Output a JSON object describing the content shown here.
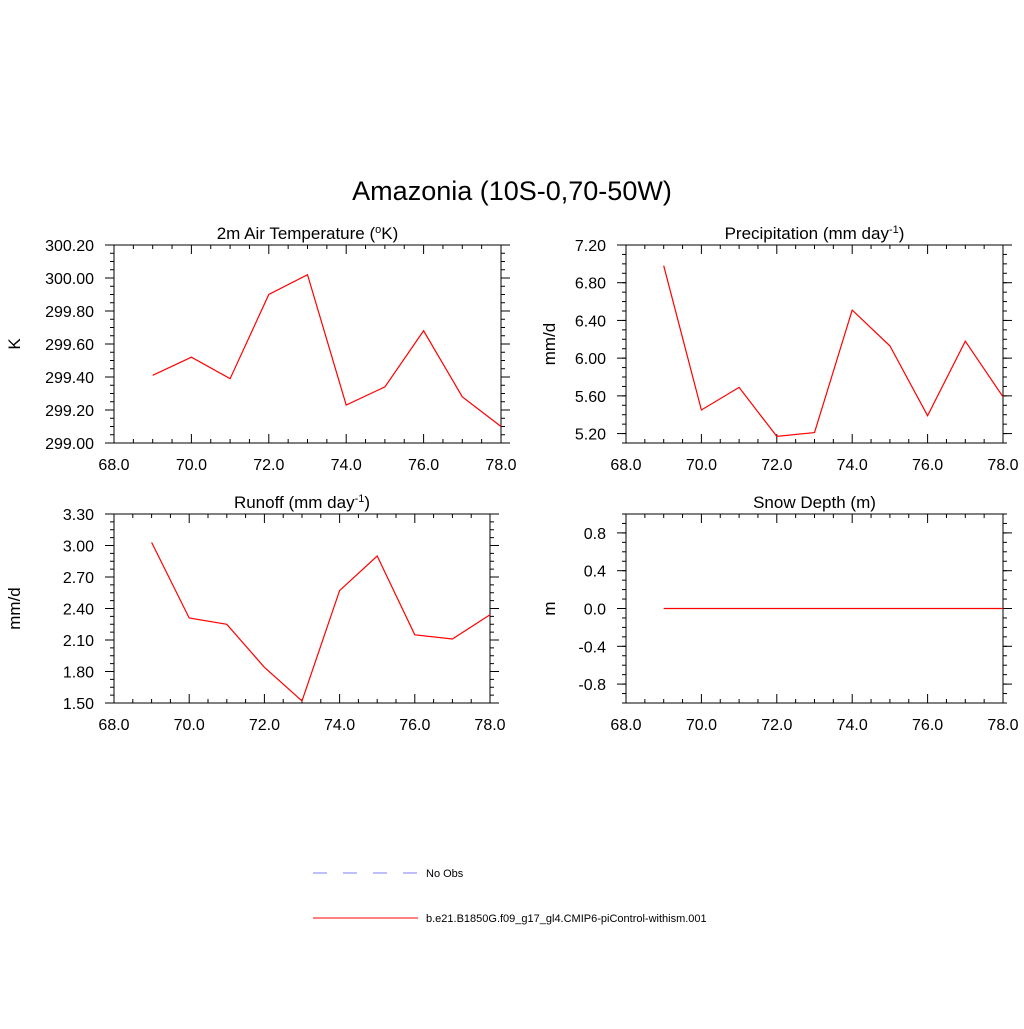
{
  "title": "Amazonia (10S-0,70-50W)",
  "colors": {
    "series": "#ff0000",
    "obs": "#9999ff",
    "axis": "#000000"
  },
  "chart_data": [
    {
      "id": "temp",
      "type": "line",
      "title": "2m Air Temperature (",
      "title_sup": "o",
      "title_after": "K)",
      "ylabel": "K",
      "xlim": [
        68,
        78
      ],
      "ylim": [
        299.0,
        300.2
      ],
      "xticks": [
        "68.0",
        "70.0",
        "72.0",
        "74.0",
        "76.0",
        "78.0"
      ],
      "yticks": [
        "299.00",
        "299.20",
        "299.40",
        "299.60",
        "299.80",
        "300.00",
        "300.20"
      ],
      "x": [
        69,
        70,
        71,
        72,
        73,
        74,
        75,
        76,
        77,
        78
      ],
      "y": [
        299.41,
        299.52,
        299.39,
        299.9,
        300.02,
        299.23,
        299.34,
        299.68,
        299.28,
        299.1
      ]
    },
    {
      "id": "precip",
      "type": "line",
      "title": "Precipitation (mm day",
      "title_sup": "-1",
      "title_after": ")",
      "ylabel": "mm/d",
      "xlim": [
        68,
        78
      ],
      "ylim": [
        5.1,
        7.2
      ],
      "xticks": [
        "68.0",
        "70.0",
        "72.0",
        "74.0",
        "76.0",
        "78.0"
      ],
      "yticks": [
        "5.20",
        "5.60",
        "6.00",
        "6.40",
        "6.80",
        "7.20"
      ],
      "x": [
        69,
        70,
        71,
        72,
        73,
        74,
        75,
        76,
        77,
        78
      ],
      "y": [
        6.98,
        5.45,
        5.69,
        5.17,
        5.21,
        6.51,
        6.13,
        5.39,
        6.18,
        5.59
      ]
    },
    {
      "id": "runoff",
      "type": "line",
      "title": "Runoff (mm day",
      "title_sup": "-1",
      "title_after": ")",
      "ylabel": "mm/d",
      "xlim": [
        68,
        78
      ],
      "ylim": [
        1.5,
        3.3
      ],
      "xticks": [
        "68.0",
        "70.0",
        "72.0",
        "74.0",
        "76.0",
        "78.0"
      ],
      "yticks": [
        "1.50",
        "1.80",
        "2.10",
        "2.40",
        "2.70",
        "3.00",
        "3.30"
      ],
      "x": [
        69,
        70,
        71,
        72,
        73,
        74,
        75,
        76,
        77,
        78
      ],
      "y": [
        3.03,
        2.31,
        2.25,
        1.84,
        1.52,
        2.57,
        2.9,
        2.15,
        2.11,
        2.34
      ]
    },
    {
      "id": "snow",
      "type": "line",
      "title": "Snow Depth (m)",
      "title_sup": "",
      "title_after": "",
      "ylabel": "m",
      "xlim": [
        68,
        78
      ],
      "ylim": [
        -1.0,
        1.0
      ],
      "xticks": [
        "68.0",
        "70.0",
        "72.0",
        "74.0",
        "76.0",
        "78.0"
      ],
      "yticks": [
        "-0.8",
        "-0.4",
        "0.0",
        "0.4",
        "0.8"
      ],
      "ytick_values": [
        -0.8,
        -0.4,
        0.0,
        0.4,
        0.8
      ],
      "x": [
        69,
        70,
        71,
        72,
        73,
        74,
        75,
        76,
        77,
        78
      ],
      "y": [
        0,
        0,
        0,
        0,
        0,
        0,
        0,
        0,
        0,
        0
      ]
    }
  ],
  "legend": {
    "obs_label": "No Obs",
    "model_label": "b.e21.B1850G.f09_g17_gl4.CMIP6-piControl-withism.001"
  }
}
